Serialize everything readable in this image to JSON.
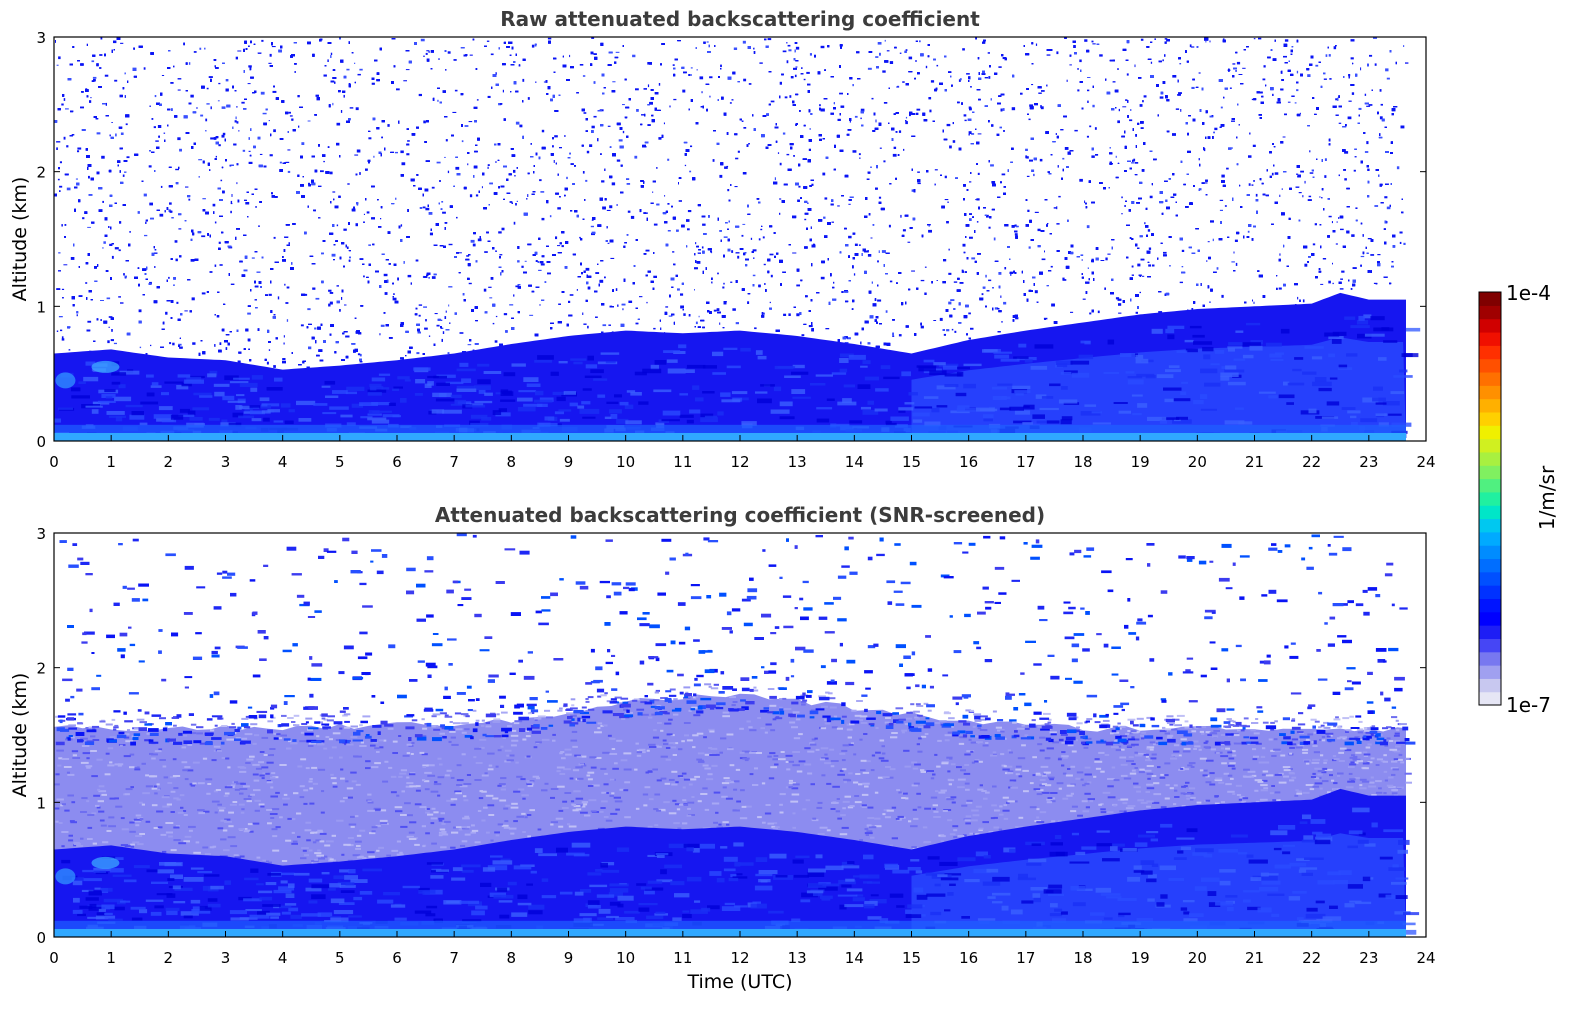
{
  "chart_data": [
    {
      "type": "heatmap",
      "title": "Raw attenuated backscattering coefficient",
      "xlabel": "",
      "ylabel": "Altitude (km)",
      "xlim": [
        0,
        24
      ],
      "ylim": [
        0,
        3
      ],
      "x_ticks": [
        "0",
        "1",
        "2",
        "3",
        "4",
        "5",
        "6",
        "7",
        "8",
        "9",
        "10",
        "11",
        "12",
        "13",
        "14",
        "15",
        "16",
        "17",
        "18",
        "19",
        "20",
        "21",
        "22",
        "23",
        "24"
      ],
      "y_ticks": [
        "0",
        "1",
        "2",
        "3"
      ],
      "data_end_time": 23.65,
      "layer_top_km": {
        "time": [
          0,
          1,
          2,
          3,
          4,
          5,
          6,
          7,
          8,
          9,
          10,
          11,
          12,
          13,
          14,
          15,
          16,
          17,
          18,
          19,
          20,
          21,
          22,
          22.5,
          23,
          23.65
        ],
        "altitude": [
          0.65,
          0.68,
          0.62,
          0.6,
          0.53,
          0.56,
          0.6,
          0.65,
          0.72,
          0.78,
          0.82,
          0.8,
          0.82,
          0.78,
          0.72,
          0.65,
          0.75,
          0.82,
          0.88,
          0.94,
          0.98,
          1.0,
          1.02,
          1.1,
          1.05,
          1.05
        ]
      },
      "noise": "dense speckle above the layer top"
    },
    {
      "type": "heatmap",
      "title": "Attenuated backscattering coefficient (SNR-screened)",
      "xlabel": "Time (UTC)",
      "ylabel": "Altitude (km)",
      "xlim": [
        0,
        24
      ],
      "ylim": [
        0,
        3
      ],
      "x_ticks": [
        "0",
        "1",
        "2",
        "3",
        "4",
        "5",
        "6",
        "7",
        "8",
        "9",
        "10",
        "11",
        "12",
        "13",
        "14",
        "15",
        "16",
        "17",
        "18",
        "19",
        "20",
        "21",
        "22",
        "23",
        "24"
      ],
      "y_ticks": [
        "0",
        "1",
        "2",
        "3"
      ],
      "data_end_time": 23.65,
      "layer_top_km": {
        "time": [
          0,
          1,
          2,
          3,
          4,
          5,
          6,
          7,
          8,
          9,
          10,
          11,
          12,
          13,
          14,
          15,
          16,
          17,
          18,
          19,
          20,
          21,
          22,
          22.5,
          23,
          23.65
        ],
        "altitude": [
          0.65,
          0.68,
          0.62,
          0.6,
          0.53,
          0.56,
          0.6,
          0.65,
          0.72,
          0.78,
          0.82,
          0.8,
          0.82,
          0.78,
          0.72,
          0.65,
          0.75,
          0.82,
          0.88,
          0.94,
          0.98,
          1.0,
          1.02,
          1.1,
          1.05,
          1.05
        ]
      },
      "screened_top_km": {
        "time": [
          0,
          4,
          8,
          10,
          12,
          14,
          16,
          18,
          20,
          22,
          23.65
        ],
        "altitude": [
          1.55,
          1.55,
          1.6,
          1.75,
          1.8,
          1.7,
          1.6,
          1.55,
          1.55,
          1.55,
          1.55
        ]
      }
    }
  ],
  "colorbar": {
    "label": "1/m/sr",
    "min_label": "1e-7",
    "max_label": "1e-4",
    "scale": "log",
    "colors": [
      "#e6e6f5",
      "#c8c8f0",
      "#a0a0f0",
      "#7878f0",
      "#4646f5",
      "#1e1ef5",
      "#0000ff",
      "#0014ff",
      "#0032ff",
      "#0050ff",
      "#006eff",
      "#008cff",
      "#00aaff",
      "#00c8f0",
      "#00e6c8",
      "#20f0a0",
      "#50f080",
      "#80f060",
      "#a8f040",
      "#d0f020",
      "#f0f000",
      "#ffd000",
      "#ffb000",
      "#ff9000",
      "#ff7000",
      "#ff5000",
      "#ff3000",
      "#f01000",
      "#d00000",
      "#a00000",
      "#800000"
    ]
  },
  "colors": {
    "layer_dark": "#1616f0",
    "layer_mid": "#2a4bff",
    "near_ground": "#30a8ff",
    "noise_blue": "#0a14f5",
    "screened_lavender": "#8c8cf0"
  }
}
